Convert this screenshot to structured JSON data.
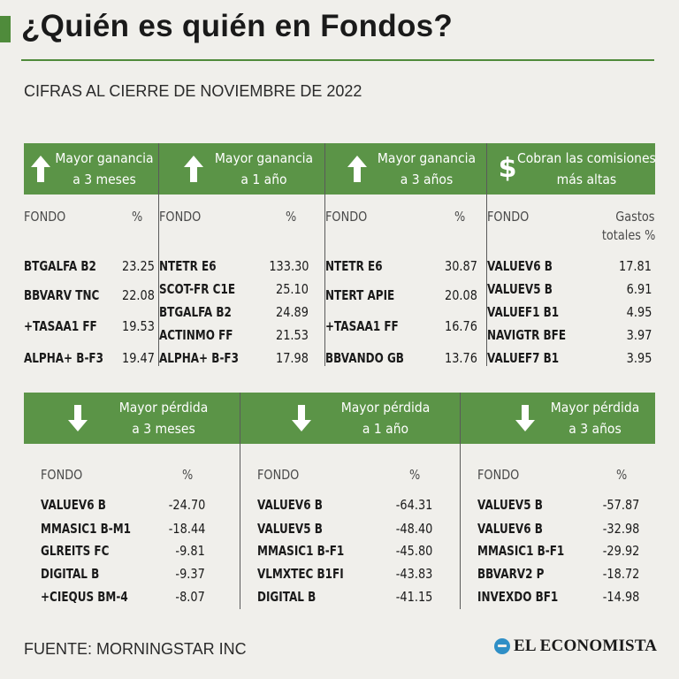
{
  "title": "¿Quién es quién en Fondos?",
  "subtitle": "CIFRAS AL CIERRE DE NOVIEMBRE DE 2022",
  "source": "FUENTE: MORNINGSTAR INC",
  "logo_text": "EL ECONOMISTA",
  "colors": {
    "accent": "#5b9447",
    "background": "#f0efeb",
    "logo": "#2f8fc6"
  },
  "top_panels": [
    {
      "icon": "arrow-up-icon",
      "heading": [
        "Mayor ganancia",
        "a 3 meses"
      ],
      "col_fund": "FONDO",
      "col_value": [
        "%"
      ],
      "rows": [
        {
          "name": "BTGALFA B2",
          "value": "23.25"
        },
        {
          "name": "BBVARV TNC",
          "value": "22.08"
        },
        {
          "name": "+TASAA1 FF",
          "value": "19.53"
        },
        {
          "name": "ALPHA+ B-F3",
          "value": "19.47"
        }
      ]
    },
    {
      "icon": "arrow-up-icon",
      "heading": [
        "Mayor ganancia",
        "a 1 año"
      ],
      "col_fund": "FONDO",
      "col_value": [
        "%"
      ],
      "rows": [
        {
          "name": "NTETR E6",
          "value": "133.30"
        },
        {
          "name": "SCOT-FR C1E",
          "value": "25.10"
        },
        {
          "name": "BTGALFA B2",
          "value": "24.89"
        },
        {
          "name": "ACTINMO FF",
          "value": "21.53"
        },
        {
          "name": "ALPHA+ B-F3",
          "value": "17.98"
        }
      ]
    },
    {
      "icon": "arrow-up-icon",
      "heading": [
        "Mayor ganancia",
        "a 3 años"
      ],
      "col_fund": "FONDO",
      "col_value": [
        "%"
      ],
      "rows": [
        {
          "name": "NTETR E6",
          "value": "30.87"
        },
        {
          "name": "NTERT APIE",
          "value": "20.08"
        },
        {
          "name": "+TASAA1 FF",
          "value": "16.76"
        },
        {
          "name": "BBVANDO GB",
          "value": "13.76"
        }
      ]
    },
    {
      "icon": "dollar-icon",
      "heading": [
        "Cobran las comisiones",
        "más altas"
      ],
      "col_fund": "FONDO",
      "col_value": [
        "Gastos",
        "totales %"
      ],
      "rows": [
        {
          "name": "VALUEV6 B",
          "value": "17.81"
        },
        {
          "name": "VALUEV5 B",
          "value": "6.91"
        },
        {
          "name": "VALUEF1 B1",
          "value": "4.95"
        },
        {
          "name": "NAVIGTR BFE",
          "value": "3.97"
        },
        {
          "name": "VALUEF7 B1",
          "value": "3.95"
        }
      ]
    }
  ],
  "bottom_panels": [
    {
      "icon": "arrow-down-icon",
      "heading": [
        "Mayor pérdida",
        "a 3 meses"
      ],
      "col_fund": "FONDO",
      "col_value": [
        "%"
      ],
      "rows": [
        {
          "name": "VALUEV6 B",
          "value": "-24.70"
        },
        {
          "name": "MMASIC1 B-M1",
          "value": "-18.44"
        },
        {
          "name": "GLREITS FC",
          "value": "-9.81"
        },
        {
          "name": "DIGITAL B",
          "value": "-9.37"
        },
        {
          "name": "+CIEQUS BM-4",
          "value": "-8.07"
        }
      ]
    },
    {
      "icon": "arrow-down-icon",
      "heading": [
        "Mayor pérdida",
        "a 1 año"
      ],
      "col_fund": "FONDO",
      "col_value": [
        "%"
      ],
      "rows": [
        {
          "name": "VALUEV6 B",
          "value": "-64.31"
        },
        {
          "name": "VALUEV5 B",
          "value": "-48.40"
        },
        {
          "name": "MMASIC1 B-F1",
          "value": "-45.80"
        },
        {
          "name": "VLMXTEC B1FI",
          "value": "-43.83"
        },
        {
          "name": "DIGITAL B",
          "value": "-41.15"
        }
      ]
    },
    {
      "icon": "arrow-down-icon",
      "heading": [
        "Mayor pérdida",
        "a 3 años"
      ],
      "col_fund": "FONDO",
      "col_value": [
        "%"
      ],
      "rows": [
        {
          "name": "VALUEV5 B",
          "value": "-57.87"
        },
        {
          "name": "VALUEV6 B",
          "value": "-32.98"
        },
        {
          "name": "MMASIC1 B-F1",
          "value": "-29.92"
        },
        {
          "name": "BBVARV2 P",
          "value": "-18.72"
        },
        {
          "name": "INVEXDO BF1",
          "value": "-14.98"
        }
      ]
    }
  ]
}
